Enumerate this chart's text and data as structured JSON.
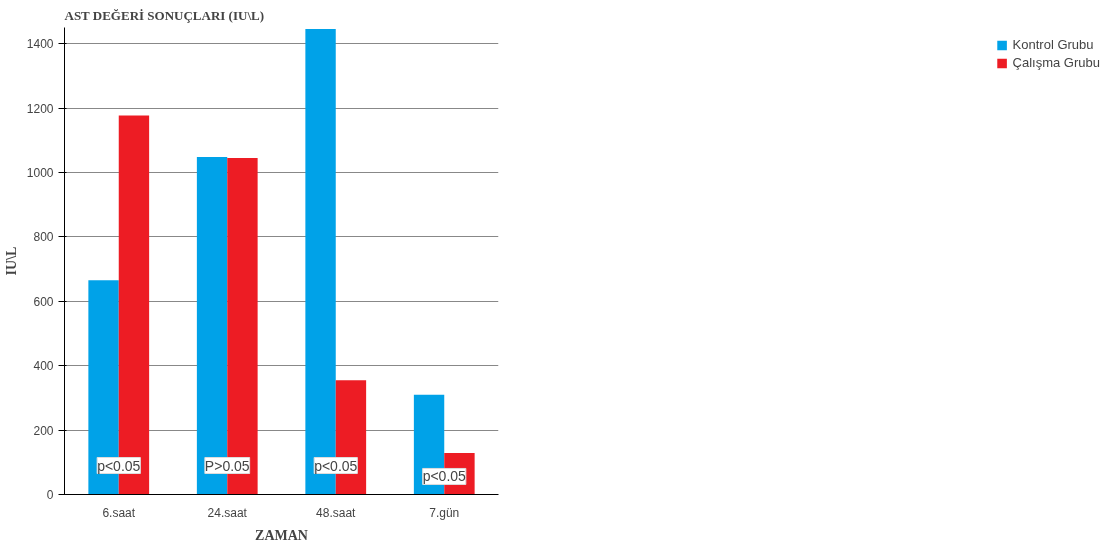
{
  "chart_data": {
    "type": "bar",
    "title": "AST DEĞERİ SONUÇLARI   (IU\\L)",
    "xlabel": "ZAMAN",
    "ylabel": "IU\\L",
    "categories": [
      "6.saat",
      "24.saat",
      "48.saat",
      "7.gün"
    ],
    "series": [
      {
        "name": "Kontrol Grubu",
        "color": "#00a2e8",
        "values": [
          665,
          1048,
          1445,
          310
        ]
      },
      {
        "name": "Çalışma Grubu",
        "color": "#ed1c24",
        "values": [
          1177,
          1045,
          355,
          129
        ]
      }
    ],
    "ylim": [
      0,
      1450
    ],
    "yticks": [
      0,
      200,
      400,
      600,
      800,
      1000,
      1200,
      1400
    ],
    "grid": "y",
    "legend": "right",
    "annotations": [
      {
        "text": "p<0.05",
        "x": "6.saat",
        "y": 90
      },
      {
        "text": "P>0.05",
        "x": "24.saat",
        "y": 90
      },
      {
        "text": "p<0.05",
        "x": "48.saat",
        "y": 90
      },
      {
        "text": "p<0.05",
        "x": "7.gün",
        "y": 56
      }
    ]
  }
}
